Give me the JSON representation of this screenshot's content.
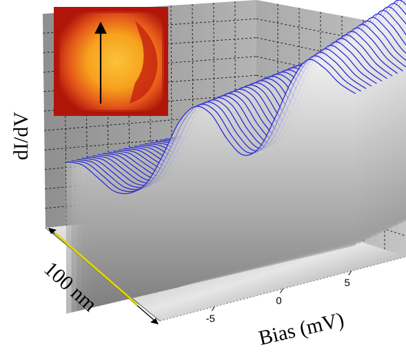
{
  "chart_data": {
    "type": "surface",
    "description_free": true,
    "ylabel": "dI/dV",
    "xlabel": "Bias (mV)",
    "depth_label": "100 nm",
    "x_ticks": [
      "-5",
      "0",
      "5"
    ],
    "x_tick_values": [
      -5,
      0,
      5
    ],
    "xlim": [
      -9,
      9
    ],
    "grid": true,
    "line_color": "#2a2ad6",
    "n_traces": 22,
    "trace_profile_x": [
      -9,
      -8,
      -7,
      -6,
      -5,
      -4,
      -3,
      -2,
      -1,
      0,
      1,
      2,
      3,
      4,
      5,
      6,
      7,
      8,
      9
    ],
    "trace_first_y": [
      0.55,
      0.5,
      0.38,
      0.26,
      0.22,
      0.26,
      0.42,
      0.62,
      0.7,
      0.62,
      0.42,
      0.28,
      0.3,
      0.48,
      0.7,
      0.82,
      0.74,
      0.6,
      0.5
    ],
    "trace_last_y": [
      0.38,
      0.34,
      0.26,
      0.2,
      0.18,
      0.22,
      0.36,
      0.55,
      0.66,
      0.6,
      0.4,
      0.26,
      0.28,
      0.5,
      0.78,
      0.98,
      0.86,
      0.66,
      0.52
    ]
  },
  "inset": {
    "colors": {
      "dark": "#b0160a",
      "mid": "#e4561a",
      "light": "#f7a21d",
      "bright": "#fbc23a"
    }
  },
  "colors": {
    "wall": "#9d9d9d",
    "floor": "#d8d8d8",
    "scale_bar": "#e0d400"
  }
}
